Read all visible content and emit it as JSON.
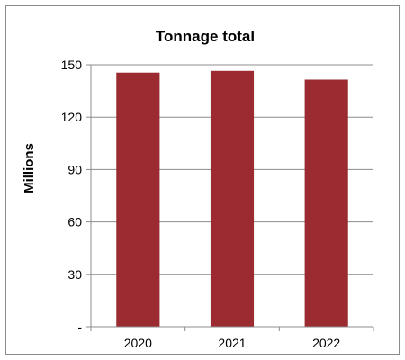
{
  "chart_data": {
    "type": "bar",
    "title": "Tonnage total",
    "xlabel": "",
    "ylabel": "Millions",
    "categories": [
      "2020",
      "2021",
      "2022"
    ],
    "values": [
      145.5,
      146.5,
      141.5
    ],
    "ylim": [
      0,
      150
    ],
    "yticks": [
      {
        "value": 0,
        "label": "-"
      },
      {
        "value": 30,
        "label": "30"
      },
      {
        "value": 60,
        "label": "60"
      },
      {
        "value": 90,
        "label": "90"
      },
      {
        "value": 120,
        "label": "120"
      },
      {
        "value": 150,
        "label": "150"
      }
    ],
    "bar_color": "#9B2B31",
    "gridline_color": "#8c8c8c",
    "grid": true,
    "legend": "none"
  }
}
